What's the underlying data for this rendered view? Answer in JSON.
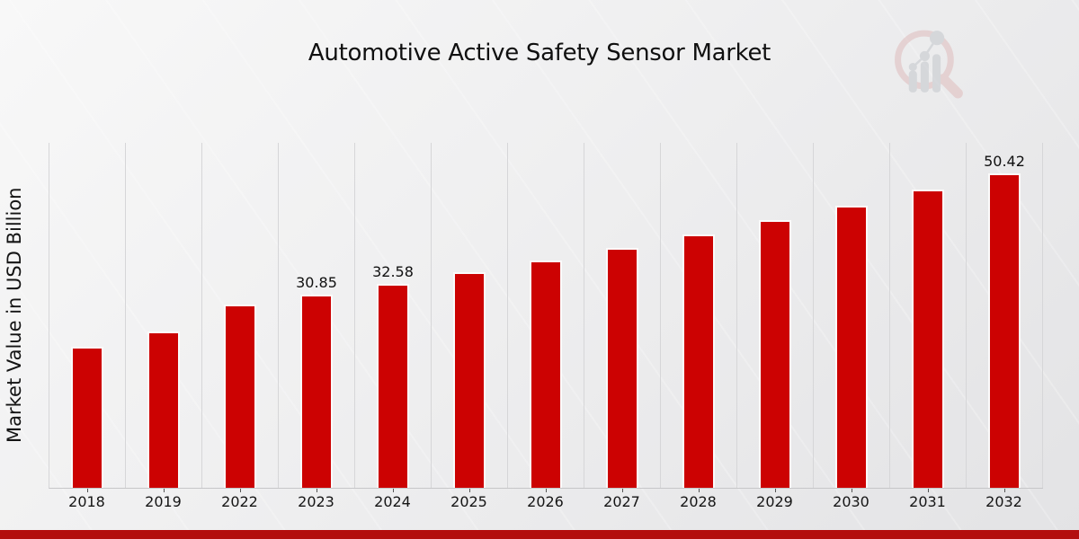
{
  "chart_data": {
    "type": "bar",
    "title": "Automotive Active Safety Sensor Market",
    "ylabel": "Market Value in USD Billion",
    "xlabel": "",
    "categories": [
      "2018",
      "2019",
      "2022",
      "2023",
      "2024",
      "2025",
      "2026",
      "2027",
      "2028",
      "2029",
      "2030",
      "2031",
      "2032"
    ],
    "values": [
      22.4,
      24.9,
      29.21,
      30.85,
      32.58,
      34.41,
      36.34,
      38.38,
      40.53,
      42.81,
      45.21,
      47.74,
      50.42
    ],
    "data_labels": {
      "2023": "30.85",
      "2024": "32.58",
      "2032": "50.42"
    },
    "ylim": [
      0,
      55.6
    ],
    "grid": "vertical-only",
    "legend": "none",
    "bar_color": "#cc0202",
    "bar_edge_color": "#fbfbfb"
  },
  "branding": {
    "logo": "market-research-future-watermark",
    "logo_ring_color": "#dfbcbc",
    "logo_bars_color": "#c4c7cc"
  },
  "footer": {
    "band_color": "#b30e0e"
  }
}
